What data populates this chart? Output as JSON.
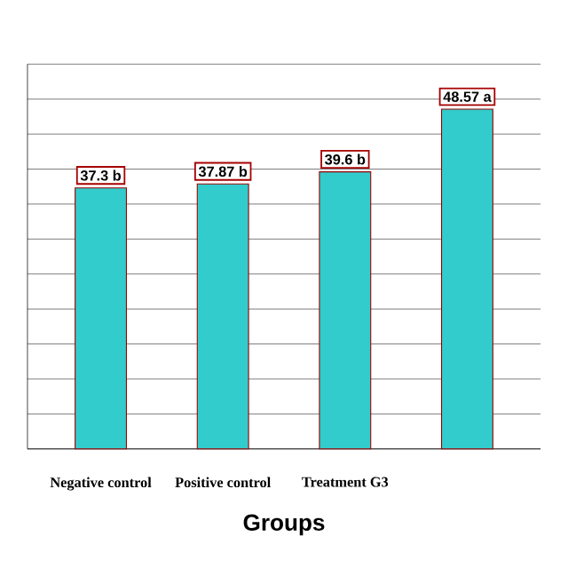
{
  "chart_data": {
    "type": "bar",
    "xlabel": "Groups",
    "categories": [
      "Negative control",
      "Positive control",
      "Treatment G3",
      null
    ],
    "values": [
      37.3,
      37.87,
      39.6,
      48.57
    ],
    "value_labels": [
      "37.3 b",
      "37.87 b",
      "39.6 b",
      "48.57 a"
    ],
    "color": "#33cccc",
    "ylim": [
      0,
      55
    ],
    "yticks": [
      {
        "value": 0,
        "label": null
      },
      {
        "value": 5,
        "label": null
      },
      {
        "value": 10,
        "label": null
      },
      {
        "value": 15,
        "label": null
      },
      {
        "value": 20,
        "label": null
      },
      {
        "value": 25,
        "label": null
      },
      {
        "value": 30,
        "label": null
      },
      {
        "value": 35,
        "label": null
      },
      {
        "value": 40,
        "label": null
      },
      {
        "value": 45,
        "label": null
      },
      {
        "value": 50,
        "label": null
      },
      {
        "value": 55,
        "label": null
      }
    ],
    "tick_labels": "x",
    "grid": "y"
  }
}
